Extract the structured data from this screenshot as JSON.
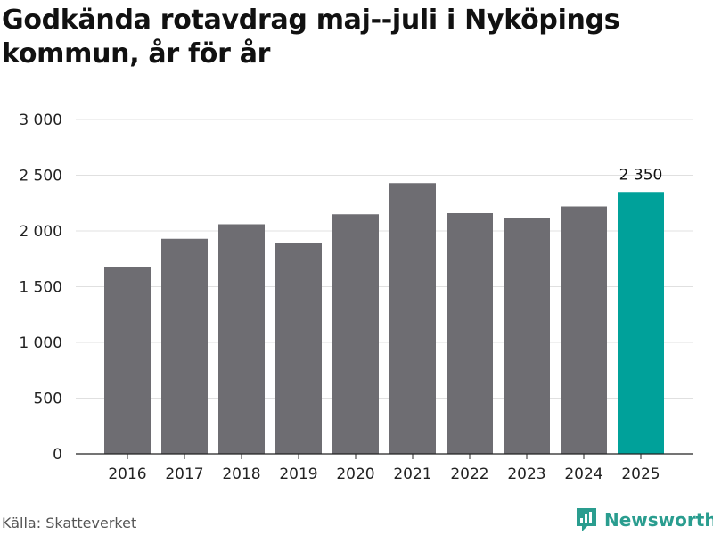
{
  "title": "Godkända rotavdrag maj--juli i Nyköpings kommun, år för år",
  "source": "Källa: Skatteverket",
  "brand": "Newsworthy",
  "colors": {
    "bar": "#6e6d72",
    "highlight": "#00a19a",
    "grid": "#e0e0e0",
    "axis": "#222222",
    "brand": "#2a9d8f"
  },
  "chart_data": {
    "type": "bar",
    "categories": [
      "2016",
      "2017",
      "2018",
      "2019",
      "2020",
      "2021",
      "2022",
      "2023",
      "2024",
      "2025"
    ],
    "values": [
      1680,
      1930,
      2060,
      1890,
      2150,
      2430,
      2160,
      2120,
      2220,
      2350
    ],
    "highlight_index": 9,
    "data_labels": [
      {
        "index": 9,
        "text": "2 350"
      }
    ],
    "ylim": [
      0,
      3000
    ],
    "yticks": [
      0,
      500,
      1000,
      1500,
      2000,
      2500,
      3000
    ],
    "ytick_labels": [
      "0",
      "500",
      "1 000",
      "1 500",
      "2 000",
      "2 500",
      "3 000"
    ],
    "grid": true,
    "xlabel": "",
    "ylabel": ""
  }
}
